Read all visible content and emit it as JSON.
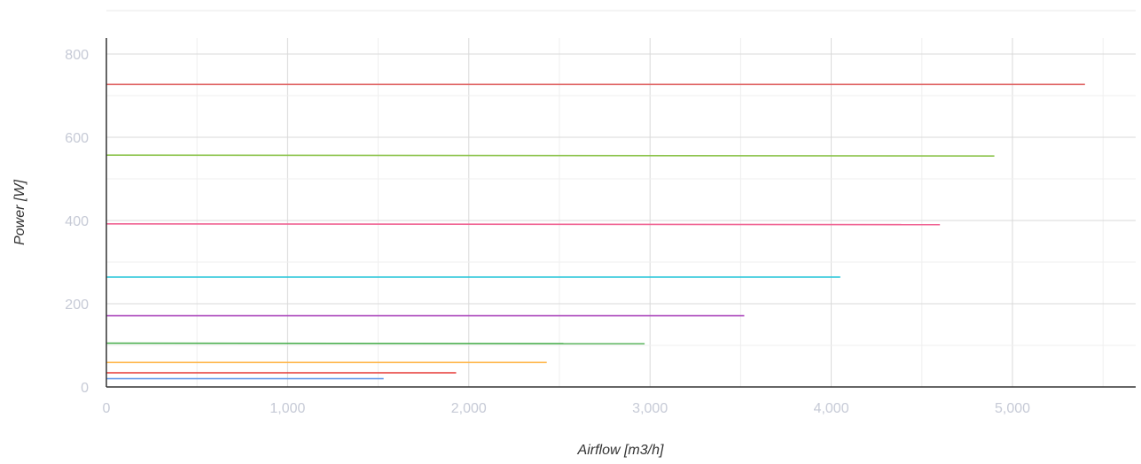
{
  "chart_data": {
    "type": "line",
    "title": "",
    "xlabel": "Airflow [m3/h]",
    "ylabel": "Power [W]",
    "xlim": [
      0,
      5700
    ],
    "ylim": [
      0,
      840
    ],
    "xticks": [
      0,
      1000,
      2000,
      3000,
      4000,
      5000
    ],
    "xtick_labels": [
      "0",
      "1,000",
      "2,000",
      "3,000",
      "4,000",
      "5,000"
    ],
    "yticks": [
      0,
      200,
      400,
      600,
      800
    ],
    "ytick_labels": [
      "0",
      "200",
      "400",
      "600",
      "800"
    ],
    "grid": true,
    "legend": "none",
    "series": [
      {
        "color": "#e06666",
        "x": [
          0,
          5400
        ],
        "y": [
          727,
          727
        ]
      },
      {
        "color": "#8bc34a",
        "x": [
          0,
          4900
        ],
        "y": [
          557,
          555
        ]
      },
      {
        "color": "#f06292",
        "x": [
          0,
          4600
        ],
        "y": [
          392,
          390
        ]
      },
      {
        "color": "#26c6da",
        "x": [
          0,
          4050
        ],
        "y": [
          264,
          264
        ]
      },
      {
        "color": "#ab47bc",
        "x": [
          0,
          3520
        ],
        "y": [
          171,
          171
        ]
      },
      {
        "color": "#4caf50",
        "x": [
          0,
          2970
        ],
        "y": [
          105,
          104
        ]
      },
      {
        "color": "#ffb74d",
        "x": [
          0,
          2430
        ],
        "y": [
          59,
          59
        ]
      },
      {
        "color": "#e53935",
        "x": [
          0,
          1930
        ],
        "y": [
          34,
          34
        ]
      },
      {
        "color": "#6d9eeb",
        "x": [
          0,
          1530
        ],
        "y": [
          20,
          20
        ]
      }
    ]
  }
}
